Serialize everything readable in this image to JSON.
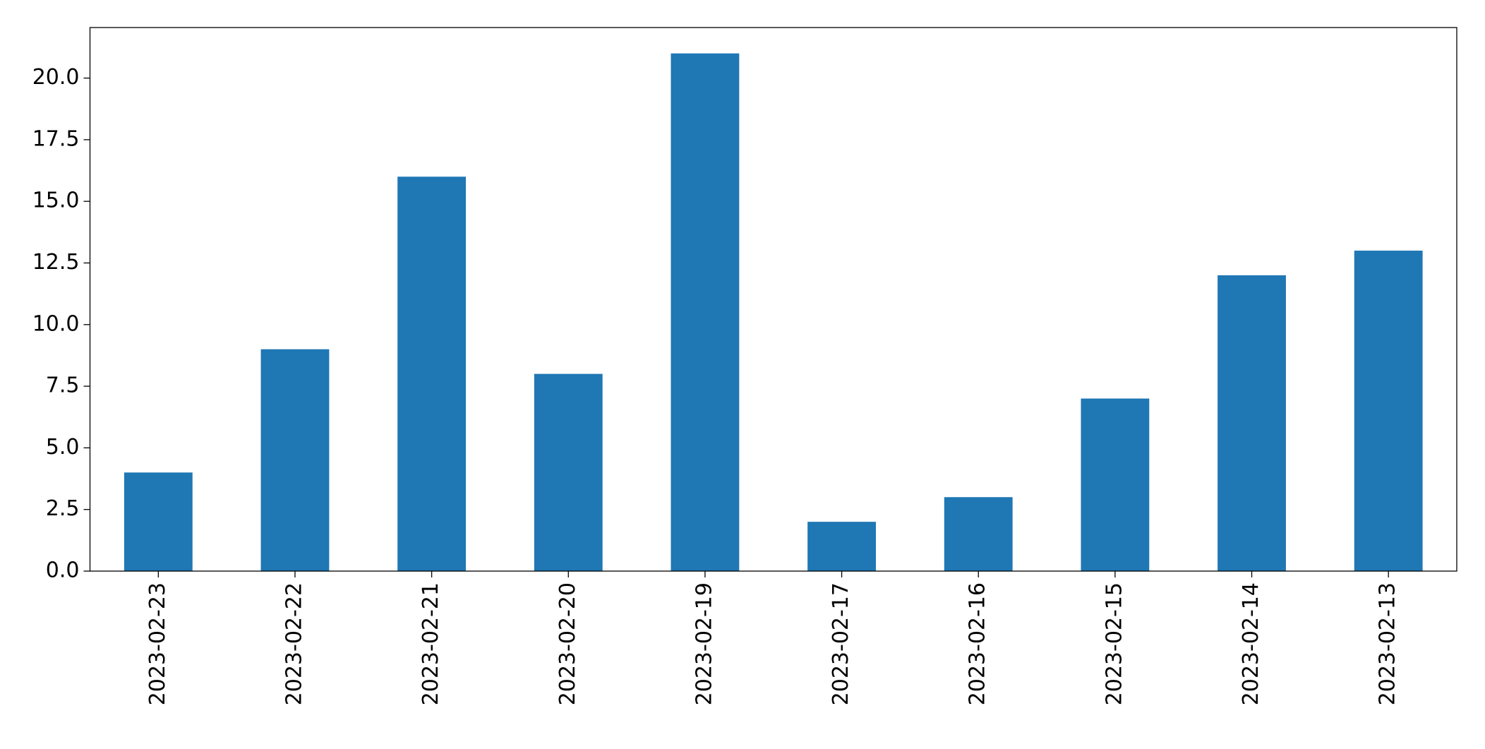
{
  "chart_data": {
    "type": "bar",
    "categories": [
      "2023-02-23",
      "2023-02-22",
      "2023-02-21",
      "2023-02-20",
      "2023-02-19",
      "2023-02-17",
      "2023-02-16",
      "2023-02-15",
      "2023-02-14",
      "2023-02-13"
    ],
    "values": [
      4,
      9,
      16,
      8,
      21,
      2,
      3,
      7,
      12,
      13
    ],
    "color": "#1f77b4",
    "ylim": [
      0,
      22.05
    ],
    "yticks": [
      {
        "value": 0,
        "label": "0.0"
      },
      2.5,
      {
        "value": 5,
        "label": "5.0"
      },
      7.5,
      {
        "value": 10,
        "label": "10.0"
      },
      12.5,
      {
        "value": 15,
        "label": "15.0"
      },
      17.5,
      {
        "value": 20,
        "label": "20.0"
      }
    ],
    "grid": false
  }
}
